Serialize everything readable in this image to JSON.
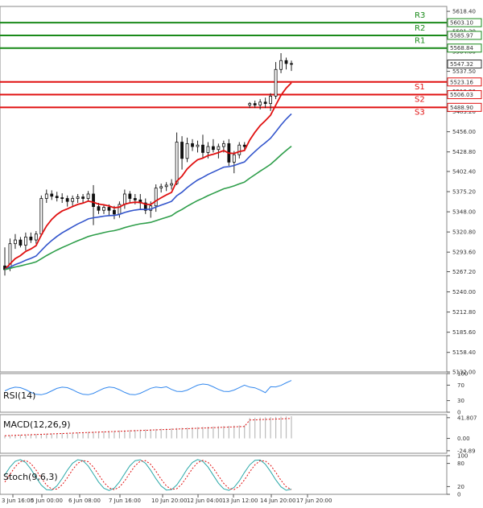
{
  "chart_data": {
    "type": "candlestick",
    "price_axis": {
      "range": [
        5132,
        5625
      ],
      "ticks": [
        "5618.40",
        "5591.30",
        "5564.00",
        "5537.50",
        "5510.20",
        "5483.20",
        "5456.00",
        "5428.80",
        "5402.40",
        "5375.20",
        "5348.00",
        "5320.80",
        "5293.60",
        "5267.20",
        "5240.00",
        "5212.80",
        "5185.60",
        "5158.40",
        "5132.00"
      ]
    },
    "time_labels": [
      "3 Jun 16:00",
      "5 Jun 00:00",
      "6 Jun 08:00",
      "7 Jun 16:00",
      "10 Jun 20:00",
      "12 Jun 04:00",
      "13 Jun 12:00",
      "14 Jun 20:00",
      "17 Jun 20:00"
    ],
    "current_price": "5547.32",
    "levels": [
      {
        "name": "R3",
        "value": "5603.10",
        "type": "resistance"
      },
      {
        "name": "R2",
        "value": "5585.97",
        "type": "resistance"
      },
      {
        "name": "R1",
        "value": "5568.84",
        "type": "resistance"
      },
      {
        "name": "S1",
        "value": "5523.16",
        "type": "support"
      },
      {
        "name": "S2",
        "value": "5506.03",
        "type": "support"
      },
      {
        "name": "S3",
        "value": "5488.90",
        "type": "support"
      }
    ],
    "colors": {
      "resistance": "#1a8a1a",
      "support": "#e01010",
      "ma_fast": "#e01010",
      "ma_mid": "#3355cc",
      "ma_slow": "#2e9e4a",
      "candle": "#1a8a1a",
      "rsi": "#3388ee",
      "macd": "#e01010",
      "stoch_main": "#2aa8a8",
      "stoch_signal": "#e01010"
    },
    "candles": [
      {
        "o": 5275,
        "h": 5300,
        "l": 5262,
        "c": 5270
      },
      {
        "o": 5272,
        "h": 5312,
        "l": 5268,
        "c": 5305
      },
      {
        "o": 5305,
        "h": 5318,
        "l": 5298,
        "c": 5310
      },
      {
        "o": 5310,
        "h": 5314,
        "l": 5300,
        "c": 5303
      },
      {
        "o": 5303,
        "h": 5320,
        "l": 5296,
        "c": 5314
      },
      {
        "o": 5314,
        "h": 5320,
        "l": 5306,
        "c": 5310
      },
      {
        "o": 5310,
        "h": 5322,
        "l": 5305,
        "c": 5318
      },
      {
        "o": 5318,
        "h": 5370,
        "l": 5315,
        "c": 5366
      },
      {
        "o": 5366,
        "h": 5378,
        "l": 5360,
        "c": 5372
      },
      {
        "o": 5372,
        "h": 5377,
        "l": 5364,
        "c": 5369
      },
      {
        "o": 5369,
        "h": 5375,
        "l": 5362,
        "c": 5367
      },
      {
        "o": 5367,
        "h": 5373,
        "l": 5360,
        "c": 5366
      },
      {
        "o": 5366,
        "h": 5370,
        "l": 5355,
        "c": 5362
      },
      {
        "o": 5362,
        "h": 5370,
        "l": 5356,
        "c": 5366
      },
      {
        "o": 5366,
        "h": 5372,
        "l": 5360,
        "c": 5368
      },
      {
        "o": 5368,
        "h": 5372,
        "l": 5360,
        "c": 5366
      },
      {
        "o": 5366,
        "h": 5376,
        "l": 5362,
        "c": 5372
      },
      {
        "o": 5372,
        "h": 5384,
        "l": 5330,
        "c": 5355
      },
      {
        "o": 5355,
        "h": 5360,
        "l": 5345,
        "c": 5350
      },
      {
        "o": 5350,
        "h": 5358,
        "l": 5345,
        "c": 5354
      },
      {
        "o": 5354,
        "h": 5358,
        "l": 5342,
        "c": 5350
      },
      {
        "o": 5350,
        "h": 5356,
        "l": 5338,
        "c": 5345
      },
      {
        "o": 5345,
        "h": 5362,
        "l": 5340,
        "c": 5358
      },
      {
        "o": 5358,
        "h": 5378,
        "l": 5352,
        "c": 5372
      },
      {
        "o": 5372,
        "h": 5376,
        "l": 5360,
        "c": 5366
      },
      {
        "o": 5366,
        "h": 5372,
        "l": 5358,
        "c": 5364
      },
      {
        "o": 5364,
        "h": 5372,
        "l": 5352,
        "c": 5360
      },
      {
        "o": 5360,
        "h": 5366,
        "l": 5345,
        "c": 5350
      },
      {
        "o": 5350,
        "h": 5362,
        "l": 5340,
        "c": 5356
      },
      {
        "o": 5356,
        "h": 5385,
        "l": 5348,
        "c": 5380
      },
      {
        "o": 5380,
        "h": 5386,
        "l": 5374,
        "c": 5382
      },
      {
        "o": 5382,
        "h": 5388,
        "l": 5376,
        "c": 5384
      },
      {
        "o": 5384,
        "h": 5392,
        "l": 5378,
        "c": 5386
      },
      {
        "o": 5386,
        "h": 5455,
        "l": 5384,
        "c": 5442
      },
      {
        "o": 5442,
        "h": 5450,
        "l": 5405,
        "c": 5420
      },
      {
        "o": 5420,
        "h": 5448,
        "l": 5415,
        "c": 5440
      },
      {
        "o": 5440,
        "h": 5446,
        "l": 5430,
        "c": 5436
      },
      {
        "o": 5436,
        "h": 5444,
        "l": 5428,
        "c": 5438
      },
      {
        "o": 5438,
        "h": 5452,
        "l": 5420,
        "c": 5428
      },
      {
        "o": 5428,
        "h": 5442,
        "l": 5420,
        "c": 5436
      },
      {
        "o": 5436,
        "h": 5446,
        "l": 5428,
        "c": 5432
      },
      {
        "o": 5432,
        "h": 5440,
        "l": 5420,
        "c": 5436
      },
      {
        "o": 5436,
        "h": 5444,
        "l": 5428,
        "c": 5440
      },
      {
        "o": 5440,
        "h": 5446,
        "l": 5410,
        "c": 5415
      },
      {
        "o": 5415,
        "h": 5430,
        "l": 5400,
        "c": 5425
      },
      {
        "o": 5425,
        "h": 5442,
        "l": 5420,
        "c": 5438
      },
      {
        "o": 5438,
        "h": 5442,
        "l": 5432,
        "c": 5436
      },
      {
        "o": 5492,
        "h": 5496,
        "l": 5488,
        "c": 5494
      },
      {
        "o": 5494,
        "h": 5498,
        "l": 5488,
        "c": 5492
      },
      {
        "o": 5492,
        "h": 5500,
        "l": 5486,
        "c": 5496
      },
      {
        "o": 5496,
        "h": 5502,
        "l": 5488,
        "c": 5494
      },
      {
        "o": 5494,
        "h": 5508,
        "l": 5484,
        "c": 5504
      },
      {
        "o": 5504,
        "h": 5550,
        "l": 5500,
        "c": 5540
      },
      {
        "o": 5540,
        "h": 5562,
        "l": 5535,
        "c": 5552
      },
      {
        "o": 5552,
        "h": 5556,
        "l": 5540,
        "c": 5548
      },
      {
        "o": 5548,
        "h": 5552,
        "l": 5538,
        "c": 5547
      }
    ]
  },
  "panels": {
    "rsi": {
      "label": "RSI(14)",
      "ticks": [
        "100",
        "70",
        "30",
        "0"
      ]
    },
    "macd": {
      "label": "MACD(12,26,9)",
      "ticks": [
        "41.807",
        "0.00",
        "-24.89"
      ]
    },
    "stoch": {
      "label": "Stoch(9,6,3)",
      "ticks": [
        "100",
        "80",
        "20",
        "0"
      ]
    }
  }
}
